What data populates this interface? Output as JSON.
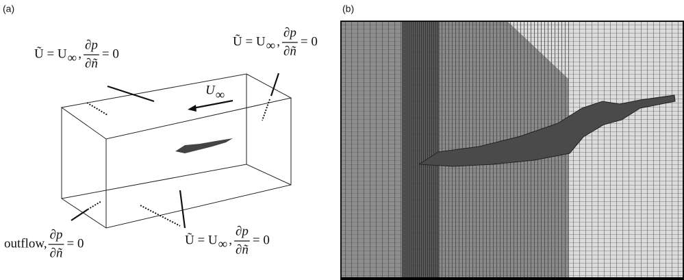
{
  "panels": [
    {
      "label": "(a)",
      "flow_label": {
        "symbol": "U",
        "subscript": "∞"
      },
      "annotations": [
        {
          "lhs": "Ũ = U",
          "subscript": "∞",
          "sep": ",",
          "numerator": "∂p",
          "denominator": "∂ñ",
          "rhs": "= 0"
        },
        {
          "lhs": "Ũ = U",
          "subscript": "∞",
          "sep": ",",
          "numerator": "∂p",
          "denominator": "∂ñ",
          "rhs": "= 0"
        },
        {
          "lhs": "Ũ = U",
          "subscript": "∞",
          "sep": ",",
          "numerator": "∂p",
          "denominator": "∂ñ",
          "rhs": "= 0"
        },
        {
          "prefix": "outflow,",
          "numerator": "∂p",
          "denominator": "∂ñ",
          "rhs": "= 0"
        }
      ]
    },
    {
      "label": "(b)"
    }
  ]
}
